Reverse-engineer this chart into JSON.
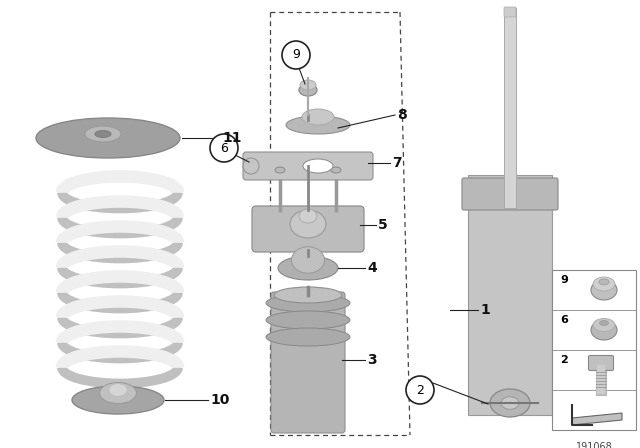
{
  "background_color": "#ffffff",
  "diagram_id": "191068",
  "part_color_main": "#b8b8b8",
  "part_color_light": "#d0d0d0",
  "part_color_dark": "#888888",
  "spring_color_light": "#e8e8e8",
  "spring_color_dark": "#b0b0b0",
  "line_color": "#222222",
  "label_fontsize": 9,
  "bold_label_fontsize": 10
}
